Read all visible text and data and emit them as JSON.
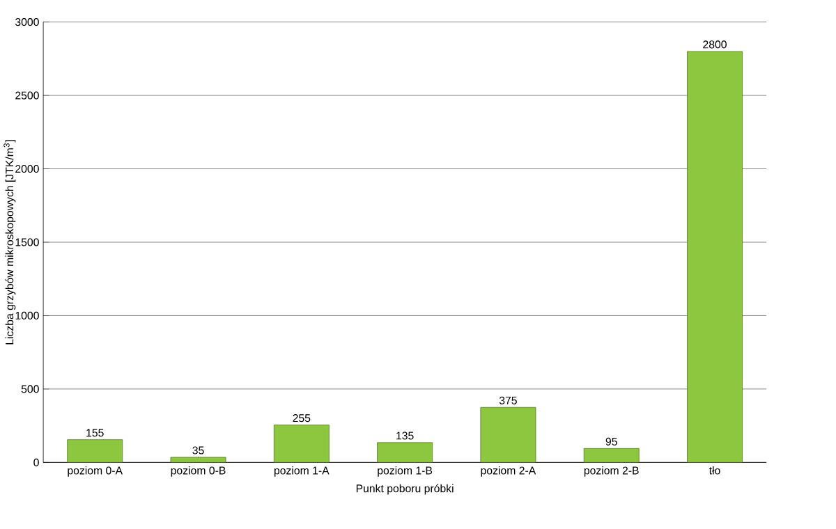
{
  "chart_data": {
    "type": "bar",
    "xlabel": "Punkt poboru próbki",
    "ylabel": "Liczba grzybów mikroskopowych  [JTK/m$^{3}$]",
    "categories": [
      "poziom 0-A",
      "poziom 0-B",
      "poziom 1-A",
      "poziom 1-B",
      "poziom 2-A",
      "poziom 2-B",
      "tło"
    ],
    "values": [
      155,
      35,
      255,
      135,
      375,
      95,
      2800
    ],
    "color": "#8dc63f",
    "ylim": [
      0,
      3000
    ],
    "yticks": [
      0,
      500,
      1000,
      1500,
      2000,
      2500,
      3000
    ],
    "grid": "y",
    "data_labels": true
  }
}
